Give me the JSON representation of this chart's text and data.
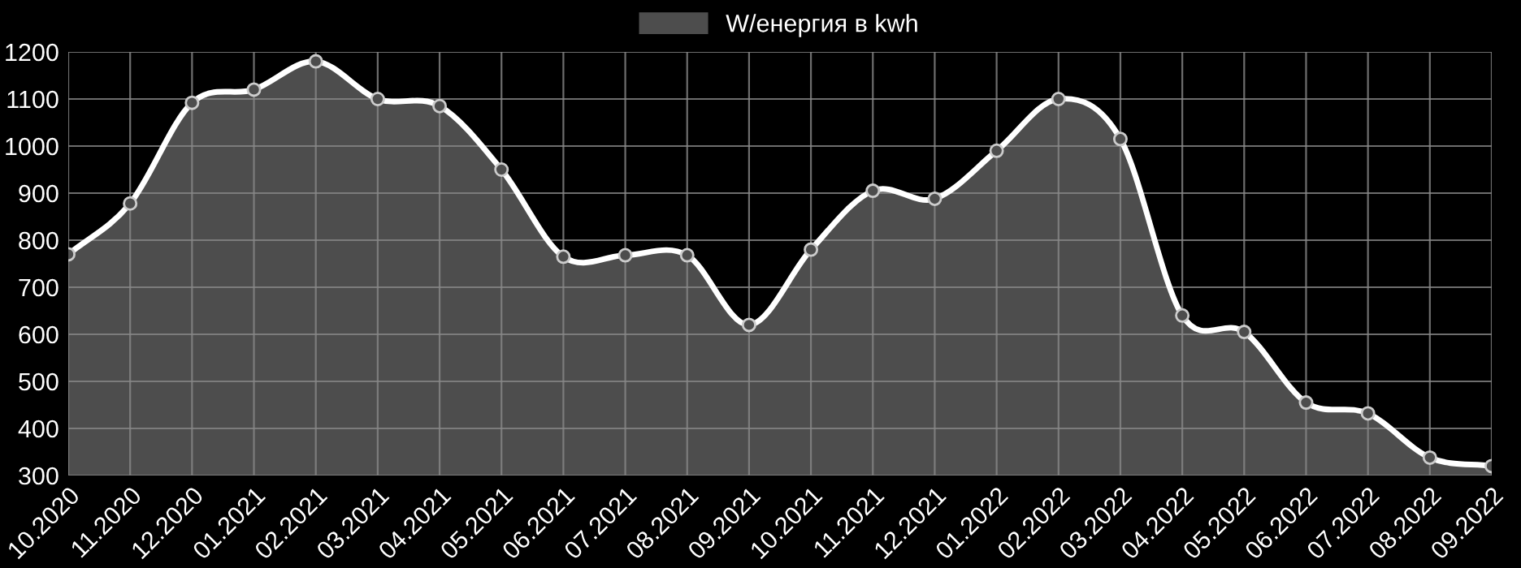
{
  "chart_data": {
    "type": "area",
    "categories": [
      "10.2020",
      "11.2020",
      "12.2020",
      "01.2021",
      "02.2021",
      "03.2021",
      "04.2021",
      "05.2021",
      "06.2021",
      "07.2021",
      "08.2021",
      "09.2021",
      "10.2021",
      "11.2021",
      "12.2021",
      "01.2022",
      "02.2022",
      "03.2022",
      "04.2022",
      "05.2022",
      "06.2022",
      "07.2022",
      "08.2022",
      "09.2022"
    ],
    "series": [
      {
        "name": "W/енергия в kwh",
        "color": "#ffffff",
        "values": [
          770,
          878,
          1092,
          1120,
          1180,
          1100,
          1085,
          950,
          765,
          768,
          768,
          620,
          780,
          905,
          888,
          990,
          1100,
          1015,
          640,
          605,
          455,
          432,
          338,
          320
        ]
      }
    ],
    "ylim": [
      300,
      1200
    ],
    "yticks": [
      300,
      400,
      500,
      600,
      700,
      800,
      900,
      1000,
      1100,
      1200
    ],
    "grid": true,
    "legend": "top",
    "marker": "circle"
  }
}
